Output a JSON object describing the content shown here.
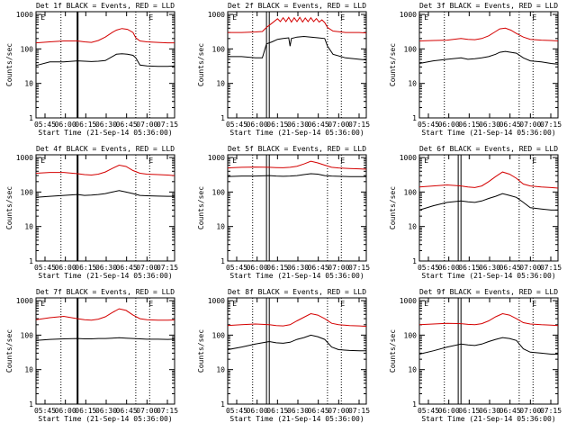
{
  "chart_data": [
    {
      "type": "line",
      "title": "Det 1f BLACK = Events, RED = LLD",
      "xlabel": "Start Time (21-Sep-14 05:36:00)",
      "ylabel": "Counts/sec",
      "x_ticks": [
        "05:45",
        "06:00",
        "06:15",
        "06:30",
        "06:45",
        "07:00",
        "07:15"
      ],
      "y_ticks": [
        "1",
        "10",
        "100",
        "1000"
      ],
      "ylim": [
        1,
        1200
      ],
      "xlim_minutes": [
        0,
        100
      ],
      "scale": "log",
      "markers": {
        "dotted": [
          18,
          72,
          82
        ],
        "solid": [
          30
        ],
        "thick": [
          30
        ],
        "E": [
          5,
          83
        ]
      },
      "series": [
        {
          "color": "#000000",
          "x": [
            0,
            10,
            20,
            30,
            35,
            40,
            45,
            50,
            55,
            58,
            62,
            66,
            70,
            72,
            75,
            80,
            88,
            95,
            100
          ],
          "y": [
            33,
            42,
            42,
            45,
            44,
            43,
            44,
            46,
            60,
            70,
            72,
            70,
            65,
            55,
            34,
            32,
            31,
            31,
            32
          ]
        },
        {
          "color": "#d40000",
          "x": [
            0,
            10,
            20,
            30,
            35,
            40,
            45,
            50,
            55,
            58,
            62,
            66,
            70,
            72,
            75,
            80,
            88,
            95,
            100
          ],
          "y": [
            150,
            160,
            170,
            170,
            160,
            155,
            175,
            220,
            300,
            350,
            390,
            370,
            300,
            210,
            170,
            160,
            155,
            150,
            150
          ]
        }
      ]
    },
    {
      "type": "line",
      "title": "Det 2f BLACK = Events, RED = LLD",
      "xlabel": "Start Time (21-Sep-14 05:36:00)",
      "ylabel": "Counts/sec",
      "x_ticks": [
        "05:45",
        "06:00",
        "06:15",
        "06:30",
        "06:45",
        "07:00",
        "07:15"
      ],
      "y_ticks": [
        "1",
        "10",
        "100",
        "1000"
      ],
      "ylim": [
        1,
        1200
      ],
      "xlim_minutes": [
        0,
        100
      ],
      "scale": "log",
      "markers": {
        "dotted": [
          18,
          72,
          82
        ],
        "solid": [
          28,
          30
        ],
        "thick": [],
        "E": [
          5,
          83
        ]
      },
      "series": [
        {
          "color": "#000000",
          "x": [
            0,
            10,
            20,
            25,
            28,
            32,
            36,
            40,
            44,
            45,
            46,
            50,
            55,
            60,
            65,
            70,
            72,
            76,
            85,
            95,
            100
          ],
          "y": [
            60,
            60,
            55,
            55,
            140,
            160,
            190,
            200,
            210,
            120,
            200,
            220,
            230,
            220,
            210,
            200,
            120,
            70,
            55,
            50,
            48
          ]
        },
        {
          "color": "#d40000",
          "x": [
            0,
            10,
            20,
            25,
            28,
            32,
            36,
            38,
            40,
            42,
            44,
            46,
            48,
            50,
            52,
            54,
            56,
            58,
            60,
            62,
            64,
            66,
            68,
            70,
            72,
            76,
            85,
            95,
            100
          ],
          "y": [
            300,
            300,
            310,
            320,
            420,
            560,
            750,
            620,
            800,
            620,
            820,
            600,
            800,
            620,
            820,
            600,
            790,
            620,
            800,
            620,
            760,
            600,
            700,
            580,
            420,
            330,
            300,
            300,
            290
          ]
        }
      ]
    },
    {
      "type": "line",
      "title": "Det 3f BLACK = Events, RED = LLD",
      "xlabel": "Start Time (21-Sep-14 05:36:00)",
      "ylabel": "Counts/sec",
      "x_ticks": [
        "05:45",
        "06:00",
        "06:15",
        "06:30",
        "06:45",
        "07:00",
        "07:15"
      ],
      "y_ticks": [
        "1",
        "10",
        "100",
        "1000"
      ],
      "ylim": [
        1,
        1200
      ],
      "xlim_minutes": [
        0,
        100
      ],
      "scale": "log",
      "markers": {
        "dotted": [
          18,
          72,
          82
        ],
        "solid": [],
        "thick": [],
        "E": [
          5,
          83
        ]
      },
      "series": [
        {
          "color": "#000000",
          "x": [
            0,
            10,
            20,
            30,
            35,
            40,
            45,
            50,
            55,
            58,
            62,
            66,
            70,
            75,
            80,
            88,
            95,
            100
          ],
          "y": [
            38,
            45,
            50,
            55,
            50,
            52,
            55,
            60,
            70,
            80,
            85,
            80,
            75,
            55,
            45,
            42,
            38,
            36
          ]
        },
        {
          "color": "#d40000",
          "x": [
            0,
            10,
            20,
            30,
            35,
            40,
            45,
            50,
            55,
            58,
            62,
            66,
            70,
            75,
            80,
            88,
            95,
            100
          ],
          "y": [
            170,
            175,
            180,
            200,
            190,
            185,
            200,
            240,
            320,
            380,
            400,
            350,
            280,
            220,
            190,
            180,
            175,
            170
          ]
        }
      ]
    },
    {
      "type": "line",
      "title": "Det 4f BLACK = Events, RED = LLD",
      "xlabel": "Start Time (21-Sep-14 05:36:00)",
      "ylabel": "Counts/sec",
      "x_ticks": [
        "05:45",
        "06:00",
        "06:15",
        "06:30",
        "06:45",
        "07:00",
        "07:15"
      ],
      "y_ticks": [
        "1",
        "10",
        "100",
        "1000"
      ],
      "ylim": [
        1,
        1200
      ],
      "xlim_minutes": [
        0,
        100
      ],
      "scale": "log",
      "markers": {
        "dotted": [
          18,
          72,
          82
        ],
        "solid": [
          30
        ],
        "thick": [
          30
        ],
        "E": [
          5,
          83
        ]
      },
      "series": [
        {
          "color": "#000000",
          "x": [
            0,
            10,
            20,
            30,
            35,
            40,
            45,
            50,
            55,
            60,
            65,
            70,
            75,
            80,
            88,
            95,
            100
          ],
          "y": [
            70,
            75,
            80,
            85,
            80,
            82,
            85,
            90,
            100,
            110,
            100,
            90,
            80,
            78,
            76,
            75,
            75
          ]
        },
        {
          "color": "#d40000",
          "x": [
            0,
            10,
            20,
            30,
            35,
            40,
            45,
            50,
            55,
            60,
            65,
            70,
            75,
            80,
            88,
            95,
            100
          ],
          "y": [
            350,
            370,
            370,
            340,
            320,
            310,
            330,
            380,
            480,
            600,
            550,
            420,
            350,
            330,
            320,
            310,
            300
          ]
        }
      ]
    },
    {
      "type": "line",
      "title": "Det 5f BLACK = Events, RED = LLD",
      "xlabel": "Start Time (21-Sep-14 05:36:00)",
      "ylabel": "Counts/sec",
      "x_ticks": [
        "05:45",
        "06:00",
        "06:15",
        "06:30",
        "06:45",
        "07:00",
        "07:15"
      ],
      "y_ticks": [
        "1",
        "10",
        "100",
        "1000"
      ],
      "ylim": [
        1,
        1200
      ],
      "xlim_minutes": [
        0,
        100
      ],
      "scale": "log",
      "markers": {
        "dotted": [
          18,
          72,
          82
        ],
        "solid": [
          28,
          30
        ],
        "thick": [],
        "E": [
          5,
          83
        ]
      },
      "series": [
        {
          "color": "#000000",
          "x": [
            0,
            10,
            20,
            30,
            35,
            40,
            45,
            50,
            55,
            60,
            65,
            70,
            75,
            80,
            88,
            95,
            100
          ],
          "y": [
            280,
            290,
            290,
            300,
            290,
            285,
            290,
            300,
            320,
            340,
            330,
            300,
            290,
            285,
            280,
            280,
            278
          ]
        },
        {
          "color": "#d40000",
          "x": [
            0,
            10,
            20,
            30,
            35,
            40,
            45,
            50,
            55,
            60,
            65,
            70,
            75,
            80,
            88,
            95,
            100
          ],
          "y": [
            500,
            520,
            530,
            520,
            510,
            505,
            520,
            560,
            650,
            780,
            700,
            600,
            520,
            500,
            480,
            470,
            460
          ]
        }
      ]
    },
    {
      "type": "line",
      "title": "Det 6f BLACK = Events, RED = LLD",
      "xlabel": "Start Time (21-Sep-14 05:36:00)",
      "ylabel": "Counts/sec",
      "x_ticks": [
        "05:45",
        "06:00",
        "06:15",
        "06:30",
        "06:45",
        "07:00",
        "07:15"
      ],
      "y_ticks": [
        "1",
        "10",
        "100",
        "1000"
      ],
      "ylim": [
        1,
        1200
      ],
      "xlim_minutes": [
        0,
        100
      ],
      "scale": "log",
      "markers": {
        "dotted": [
          18,
          72,
          82
        ],
        "solid": [
          28,
          30
        ],
        "thick": [],
        "E": [
          5,
          83
        ]
      },
      "series": [
        {
          "color": "#000000",
          "x": [
            0,
            10,
            20,
            30,
            35,
            40,
            45,
            50,
            55,
            60,
            65,
            70,
            75,
            80,
            88,
            95,
            100
          ],
          "y": [
            30,
            40,
            50,
            55,
            52,
            50,
            55,
            65,
            75,
            90,
            80,
            70,
            50,
            35,
            32,
            30,
            30
          ]
        },
        {
          "color": "#d40000",
          "x": [
            0,
            10,
            20,
            30,
            35,
            40,
            45,
            50,
            55,
            60,
            65,
            70,
            75,
            80,
            88,
            95,
            100
          ],
          "y": [
            140,
            150,
            160,
            150,
            140,
            135,
            150,
            200,
            280,
            380,
            330,
            250,
            170,
            150,
            140,
            135,
            130
          ]
        }
      ]
    },
    {
      "type": "line",
      "title": "Det 7f BLACK = Events, RED = LLD",
      "xlabel": "Start Time (21-Sep-14 05:36:00)",
      "ylabel": "Counts/sec",
      "x_ticks": [
        "05:45",
        "06:00",
        "06:15",
        "06:30",
        "06:45",
        "07:00",
        "07:15"
      ],
      "y_ticks": [
        "1",
        "10",
        "100",
        "1000"
      ],
      "ylim": [
        1,
        1200
      ],
      "xlim_minutes": [
        0,
        100
      ],
      "scale": "log",
      "markers": {
        "dotted": [
          18,
          72,
          82
        ],
        "solid": [
          30
        ],
        "thick": [
          30
        ],
        "E": [
          5,
          83
        ]
      },
      "series": [
        {
          "color": "#000000",
          "x": [
            0,
            10,
            20,
            30,
            35,
            40,
            45,
            50,
            55,
            60,
            65,
            70,
            75,
            80,
            88,
            95,
            100
          ],
          "y": [
            70,
            75,
            78,
            80,
            78,
            78,
            80,
            80,
            82,
            84,
            82,
            80,
            78,
            76,
            76,
            75,
            76
          ]
        },
        {
          "color": "#d40000",
          "x": [
            0,
            10,
            20,
            30,
            35,
            40,
            45,
            50,
            55,
            60,
            65,
            70,
            75,
            80,
            88,
            95,
            100
          ],
          "y": [
            280,
            320,
            350,
            300,
            280,
            270,
            290,
            340,
            450,
            580,
            520,
            380,
            300,
            280,
            270,
            270,
            275
          ]
        }
      ]
    },
    {
      "type": "line",
      "title": "Det 8f BLACK = Events, RED = LLD",
      "xlabel": "Start Time (21-Sep-14 05:36:00)",
      "ylabel": "Counts/sec",
      "x_ticks": [
        "05:45",
        "06:00",
        "06:15",
        "06:30",
        "06:45",
        "07:00",
        "07:15"
      ],
      "y_ticks": [
        "1",
        "10",
        "100",
        "1000"
      ],
      "ylim": [
        1,
        1200
      ],
      "xlim_minutes": [
        0,
        100
      ],
      "scale": "log",
      "markers": {
        "dotted": [
          18,
          72,
          82
        ],
        "solid": [
          28,
          30
        ],
        "thick": [],
        "E": [
          5,
          83
        ]
      },
      "series": [
        {
          "color": "#000000",
          "x": [
            0,
            10,
            20,
            30,
            35,
            40,
            45,
            50,
            55,
            60,
            65,
            70,
            75,
            80,
            88,
            95,
            100
          ],
          "y": [
            38,
            45,
            55,
            65,
            60,
            58,
            62,
            75,
            85,
            100,
            90,
            75,
            45,
            38,
            36,
            35,
            35
          ]
        },
        {
          "color": "#d40000",
          "x": [
            0,
            10,
            20,
            30,
            35,
            40,
            45,
            50,
            55,
            60,
            65,
            70,
            75,
            80,
            88,
            95,
            100
          ],
          "y": [
            190,
            200,
            210,
            200,
            190,
            185,
            200,
            260,
            330,
            420,
            380,
            300,
            220,
            200,
            190,
            185,
            180
          ]
        }
      ]
    },
    {
      "type": "line",
      "title": "Det 9f BLACK = Events, RED = LLD",
      "xlabel": "Start Time (21-Sep-14 05:36:00)",
      "ylabel": "Counts/sec",
      "x_ticks": [
        "05:45",
        "06:00",
        "06:15",
        "06:30",
        "06:45",
        "07:00",
        "07:15"
      ],
      "y_ticks": [
        "1",
        "10",
        "100",
        "1000"
      ],
      "ylim": [
        1,
        1200
      ],
      "xlim_minutes": [
        0,
        100
      ],
      "scale": "log",
      "markers": {
        "dotted": [
          18,
          72,
          82
        ],
        "solid": [
          28,
          30
        ],
        "thick": [],
        "E": [
          5,
          83
        ]
      },
      "series": [
        {
          "color": "#000000",
          "x": [
            0,
            10,
            20,
            30,
            35,
            40,
            45,
            50,
            55,
            60,
            65,
            70,
            75,
            80,
            88,
            95,
            100
          ],
          "y": [
            28,
            35,
            45,
            55,
            52,
            50,
            55,
            65,
            75,
            85,
            80,
            70,
            40,
            32,
            30,
            28,
            28
          ]
        },
        {
          "color": "#d40000",
          "x": [
            0,
            10,
            20,
            30,
            35,
            40,
            45,
            50,
            55,
            60,
            65,
            70,
            75,
            80,
            88,
            95,
            100
          ],
          "y": [
            200,
            210,
            220,
            215,
            205,
            200,
            215,
            260,
            340,
            420,
            380,
            300,
            230,
            210,
            200,
            195,
            190
          ]
        }
      ]
    }
  ]
}
